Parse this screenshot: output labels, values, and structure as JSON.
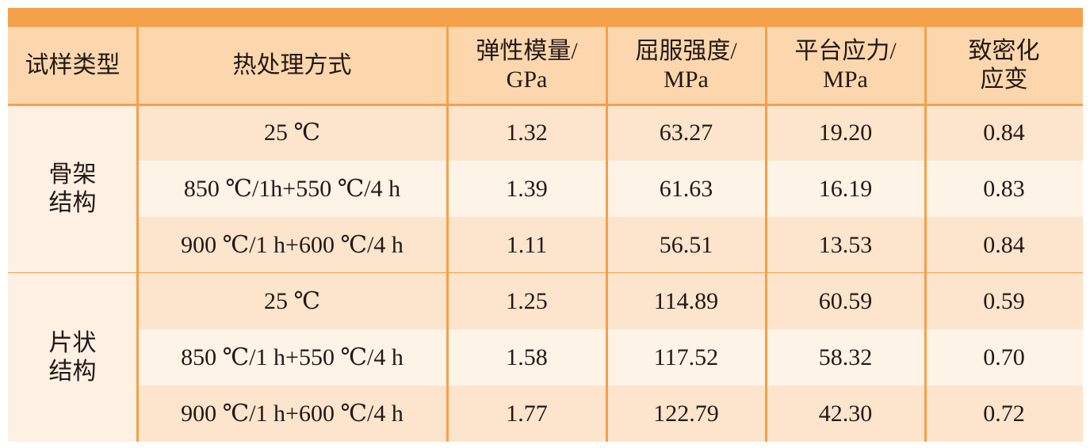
{
  "table": {
    "header": [
      [
        "试样类型"
      ],
      [
        "热处理方式"
      ],
      [
        "弹性模量/",
        "GPa"
      ],
      [
        "屈服强度/",
        "MPa"
      ],
      [
        "平台应力/",
        "MPa"
      ],
      [
        "致密化",
        "应变"
      ]
    ],
    "groups": [
      {
        "label": [
          "骨架",
          "结构"
        ],
        "rows": [
          [
            "25 ℃",
            "1.32",
            "63.27",
            "19.20",
            "0.84"
          ],
          [
            "850 ℃/1h+550 ℃/4 h",
            "1.39",
            "61.63",
            "16.19",
            "0.83"
          ],
          [
            "900 ℃/1 h+600 ℃/4 h",
            "1.11",
            "56.51",
            "13.53",
            "0.84"
          ]
        ]
      },
      {
        "label": [
          "片状",
          "结构"
        ],
        "rows": [
          [
            "25 ℃",
            "1.25",
            "114.89",
            "60.59",
            "0.59"
          ],
          [
            "850 ℃/1 h+550 ℃/4 h",
            "1.58",
            "117.52",
            "58.32",
            "0.70"
          ],
          [
            "900 ℃/1 h+600 ℃/4 h",
            "1.77",
            "122.79",
            "42.30",
            "0.72"
          ]
        ]
      }
    ]
  }
}
